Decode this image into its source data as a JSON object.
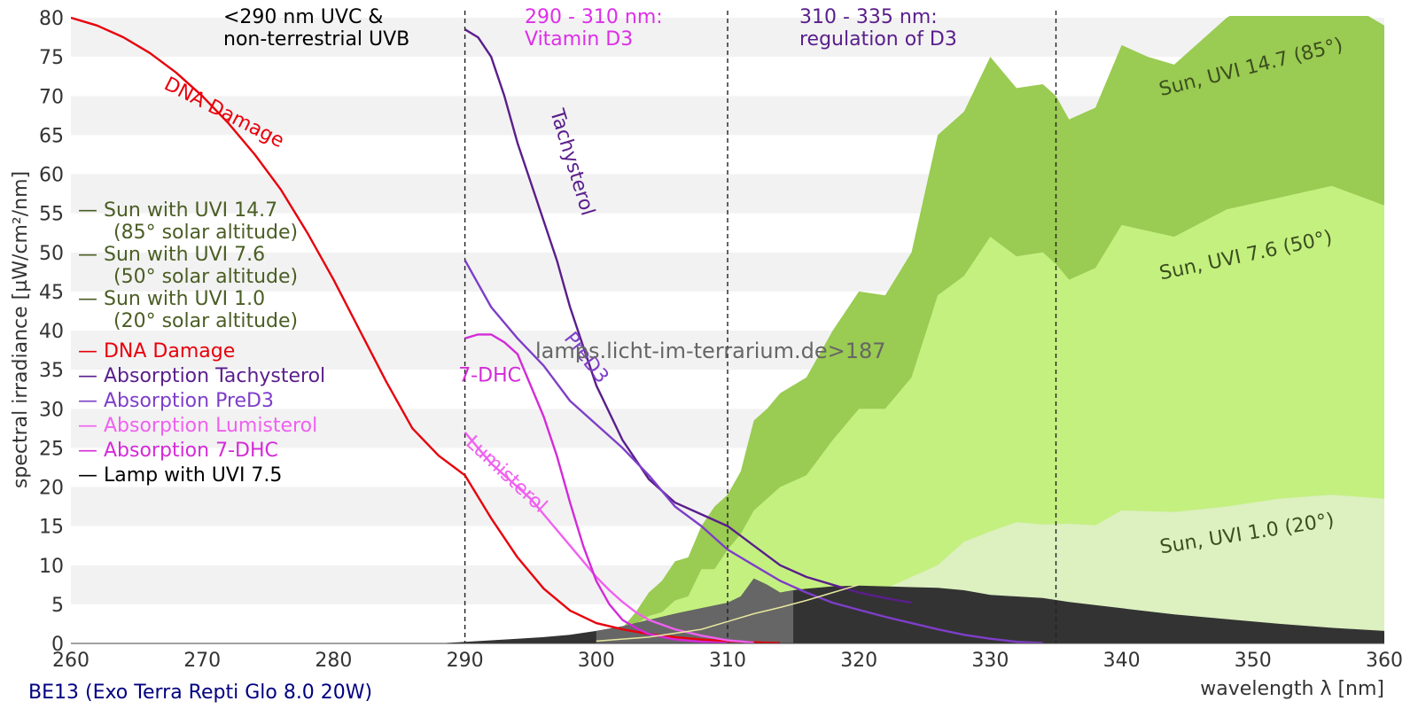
{
  "chart_data": {
    "type": "area",
    "xlabel": "wavelength λ [nm]",
    "ylabel": "spectral irradiance [µW/cm²/nm]",
    "xlim": [
      260,
      360
    ],
    "ylim": [
      0,
      80
    ],
    "x_ticks": [
      260,
      270,
      280,
      290,
      300,
      310,
      320,
      330,
      340,
      350,
      360
    ],
    "y_ticks": [
      0,
      5,
      10,
      15,
      20,
      25,
      30,
      35,
      40,
      45,
      50,
      55,
      60,
      65,
      70,
      75,
      80
    ],
    "grid": "horizontal bands",
    "footer": "BE13 (Exo Terra Repti Glo 8.0 20W)",
    "watermark": "lamps.licht-im-terrarium.de>187",
    "region_lines": [
      290,
      310,
      335
    ],
    "region_labels": [
      {
        "lines": [
          "<290 nm UVC &",
          "non-terrestrial UVB"
        ],
        "color": "#000000"
      },
      {
        "lines": [
          "290 - 310 nm:",
          "Vitamin D3"
        ],
        "color": "#dd2ee8"
      },
      {
        "lines": [
          "310 - 335 nm:",
          "regulation of D3"
        ],
        "color": "#5a1e8c"
      }
    ],
    "legend": [
      {
        "text": "— Sun with UVI 14.7",
        "color": "#4a5e24"
      },
      {
        "text": "(85° solar altitude)",
        "color": "#4a5e24"
      },
      {
        "text": "— Sun with UVI 7.6",
        "color": "#4a5e24"
      },
      {
        "text": "(50° solar altitude)",
        "color": "#4a5e24"
      },
      {
        "text": "— Sun with UVI 1.0",
        "color": "#4a5e24"
      },
      {
        "text": "(20° solar altitude)",
        "color": "#4a5e24"
      },
      {
        "text": "— DNA Damage",
        "color": "#e8000b"
      },
      {
        "text": "— Absorption Tachysterol",
        "color": "#5a1e8c"
      },
      {
        "text": "— Absorption PreD3",
        "color": "#7e3ec8"
      },
      {
        "text": "— Absorption Lumisterol",
        "color": "#f060f0"
      },
      {
        "text": "— Absorption 7-DHC",
        "color": "#d42ad8"
      },
      {
        "text": "— Lamp with UVI 7.5",
        "color": "#000000"
      }
    ],
    "series": [
      {
        "name": "Sun, UVI 14.7 (85°)",
        "kind": "area",
        "color": "#9acb52",
        "x": [
          300,
          302,
          303,
          304,
          305,
          306,
          307,
          308,
          309,
          310,
          311,
          312,
          313,
          314,
          315,
          316,
          318,
          320,
          322,
          324,
          326,
          328,
          330,
          332,
          334,
          335,
          336,
          338,
          340,
          342,
          344,
          346,
          348,
          350,
          352,
          354,
          356,
          358,
          360
        ],
        "values": [
          0.2,
          2,
          4,
          6.5,
          8,
          10.5,
          11,
          15,
          17.5,
          19,
          22,
          28.5,
          30,
          32,
          33,
          34,
          40,
          45,
          44.5,
          50,
          65,
          68,
          75,
          71,
          71.5,
          70,
          67,
          68.5,
          76.5,
          75,
          74,
          77,
          80,
          82,
          83.5,
          85,
          82,
          81,
          79
        ]
      },
      {
        "name": "Sun, UVI 7.6 (50°)",
        "kind": "area",
        "color": "#c4f080",
        "x": [
          300,
          302,
          304,
          305,
          306,
          307,
          308,
          309,
          310,
          311,
          312,
          314,
          316,
          318,
          320,
          322,
          324,
          326,
          328,
          330,
          332,
          334,
          335,
          336,
          338,
          340,
          344,
          348,
          352,
          356,
          360
        ],
        "values": [
          0.1,
          1.5,
          3.5,
          4,
          5.5,
          6,
          9.5,
          9.5,
          12,
          14,
          17,
          20,
          21.5,
          26,
          30,
          30,
          34,
          44.5,
          47,
          52,
          49.5,
          50,
          48.5,
          46.5,
          48,
          53.5,
          52,
          55.5,
          57,
          58.5,
          56
        ]
      },
      {
        "name": "Sun, UVI 1.0 (20°)",
        "kind": "area",
        "color": "#dcf0c0",
        "x": [
          300,
          302,
          305,
          308,
          310,
          312,
          314,
          316,
          318,
          320,
          322,
          324,
          326,
          328,
          330,
          332,
          334,
          336,
          338,
          340,
          344,
          348,
          352,
          356,
          360
        ],
        "values": [
          0.05,
          0.4,
          1.2,
          2.2,
          3,
          3.8,
          4.3,
          5,
          6,
          6.5,
          7,
          8.5,
          10,
          13,
          14.3,
          15.5,
          15.2,
          15.3,
          15.1,
          17,
          16.8,
          17.5,
          18.5,
          19,
          18.5
        ]
      },
      {
        "name": "Lamp with UVI 7.5",
        "kind": "area",
        "color": "#333333",
        "x": [
          288,
          290,
          292,
          294,
          296,
          298,
          300,
          302,
          304,
          306,
          308,
          310,
          311,
          312,
          313,
          314,
          315,
          316,
          318,
          320,
          322,
          324,
          326,
          328,
          330,
          332,
          334,
          336,
          340,
          344,
          348,
          352,
          356,
          360
        ],
        "values": [
          0,
          0.2,
          0.4,
          0.6,
          0.8,
          1.1,
          1.6,
          2.2,
          3,
          3.8,
          4.5,
          5.2,
          6,
          8.3,
          7.5,
          6.5,
          6.8,
          7,
          7.3,
          7.4,
          7.3,
          7.2,
          7.1,
          6.8,
          6.2,
          6,
          5.8,
          5.3,
          4.5,
          3.7,
          3.1,
          2.5,
          2,
          1.6
        ]
      },
      {
        "name": "DNA Damage",
        "kind": "line",
        "color": "#e8000b",
        "x": [
          260,
          262,
          264,
          266,
          268,
          270,
          272,
          274,
          276,
          278,
          280,
          282,
          284,
          286,
          288,
          290,
          292,
          294,
          296,
          298,
          300,
          302,
          304,
          306,
          308,
          310,
          312,
          314
        ],
        "values": [
          80,
          79,
          77.5,
          75.5,
          73,
          70,
          66.5,
          62.5,
          58,
          52.5,
          46.5,
          40,
          33.5,
          27.5,
          24,
          21.5,
          16,
          11,
          7,
          4.2,
          2.6,
          1.8,
          1.2,
          0.8,
          0.5,
          0.3,
          0.15,
          0.05
        ]
      },
      {
        "name": "Absorption Tachysterol",
        "kind": "line",
        "color": "#5a1e8c",
        "x": [
          290,
          291,
          292,
          293,
          294,
          295,
          296,
          297,
          298,
          299,
          300,
          302,
          304,
          306,
          308,
          310,
          312,
          314,
          316,
          318,
          320,
          322,
          324
        ],
        "values": [
          78.5,
          77.5,
          75,
          70,
          64,
          59,
          54,
          49,
          43,
          38,
          33,
          26,
          21,
          18,
          16.5,
          15,
          12.5,
          10,
          8.5,
          7.5,
          6.5,
          5.8,
          5.2
        ]
      },
      {
        "name": "Absorption PreD3",
        "kind": "line",
        "color": "#7e3ec8",
        "x": [
          290,
          292,
          294,
          296,
          298,
          300,
          302,
          304,
          306,
          308,
          310,
          312,
          314,
          316,
          318,
          320,
          322,
          324,
          326,
          328,
          330,
          332,
          334
        ],
        "values": [
          49,
          43,
          39,
          35.5,
          31,
          28,
          25,
          21.5,
          17.5,
          15,
          12,
          10,
          8,
          6.5,
          5.2,
          4.3,
          3.4,
          2.6,
          1.8,
          1.1,
          0.6,
          0.2,
          0.05
        ]
      },
      {
        "name": "Absorption Lumisterol",
        "kind": "line",
        "color": "#f060f0",
        "x": [
          290,
          291,
          292,
          293,
          294,
          295,
          296,
          297,
          298,
          299,
          300,
          301,
          302,
          303,
          304,
          306,
          308,
          310,
          312
        ],
        "values": [
          27,
          25,
          23,
          21.5,
          20,
          18.5,
          16.5,
          14.5,
          12.5,
          10.5,
          8.5,
          6.8,
          5.3,
          4,
          3,
          1.8,
          1,
          0.4,
          0.1
        ]
      },
      {
        "name": "Absorption 7-DHC",
        "kind": "line",
        "color": "#d42ad8",
        "x": [
          290,
          291,
          292,
          293,
          294,
          295,
          296,
          297,
          298,
          299,
          300,
          301,
          302,
          303,
          304,
          306,
          308,
          310
        ],
        "values": [
          39,
          39.5,
          39.5,
          38.5,
          37,
          33,
          29,
          24,
          18,
          12.5,
          8,
          5,
          3,
          2,
          1.2,
          0.5,
          0.2,
          0.05
        ]
      },
      {
        "name": "Lamp with UVI 7.5 (visible overlay)",
        "kind": "line",
        "color": "#e8e8a0",
        "x": [
          300,
          304,
          308,
          310,
          312,
          314,
          316,
          318,
          320
        ],
        "values": [
          0.3,
          0.8,
          1.8,
          2.8,
          3.8,
          4.6,
          5.5,
          6.5,
          7.5
        ]
      }
    ],
    "sun_labels": [
      {
        "text": "Sun, UVI 14.7 (85°)",
        "x": 343,
        "y": 70,
        "angle": -14
      },
      {
        "text": "Sun, UVI 7.6 (50°)",
        "x": 343,
        "y": 46.5,
        "angle": -12
      },
      {
        "text": "Sun, UVI 1.0 (20°)",
        "x": 343,
        "y": 11.5,
        "angle": -9
      }
    ],
    "curve_labels": [
      {
        "text": "DNA Damage",
        "x": 267,
        "y": 71,
        "angle": 27,
        "color": "#e8000b"
      },
      {
        "text": "Tachysterol",
        "x": 296.5,
        "y": 68,
        "angle": 73,
        "color": "#5a1e8c"
      },
      {
        "text": "PreD3",
        "x": 297.5,
        "y": 39,
        "angle": 52,
        "color": "#7e3ec8"
      },
      {
        "text": "7-DHC",
        "x": 289.5,
        "y": 33.5,
        "angle": 0,
        "color": "#d42ad8"
      },
      {
        "text": "Lumisterol",
        "x": 290,
        "y": 25.5,
        "angle": 43,
        "color": "#f060f0"
      }
    ]
  }
}
